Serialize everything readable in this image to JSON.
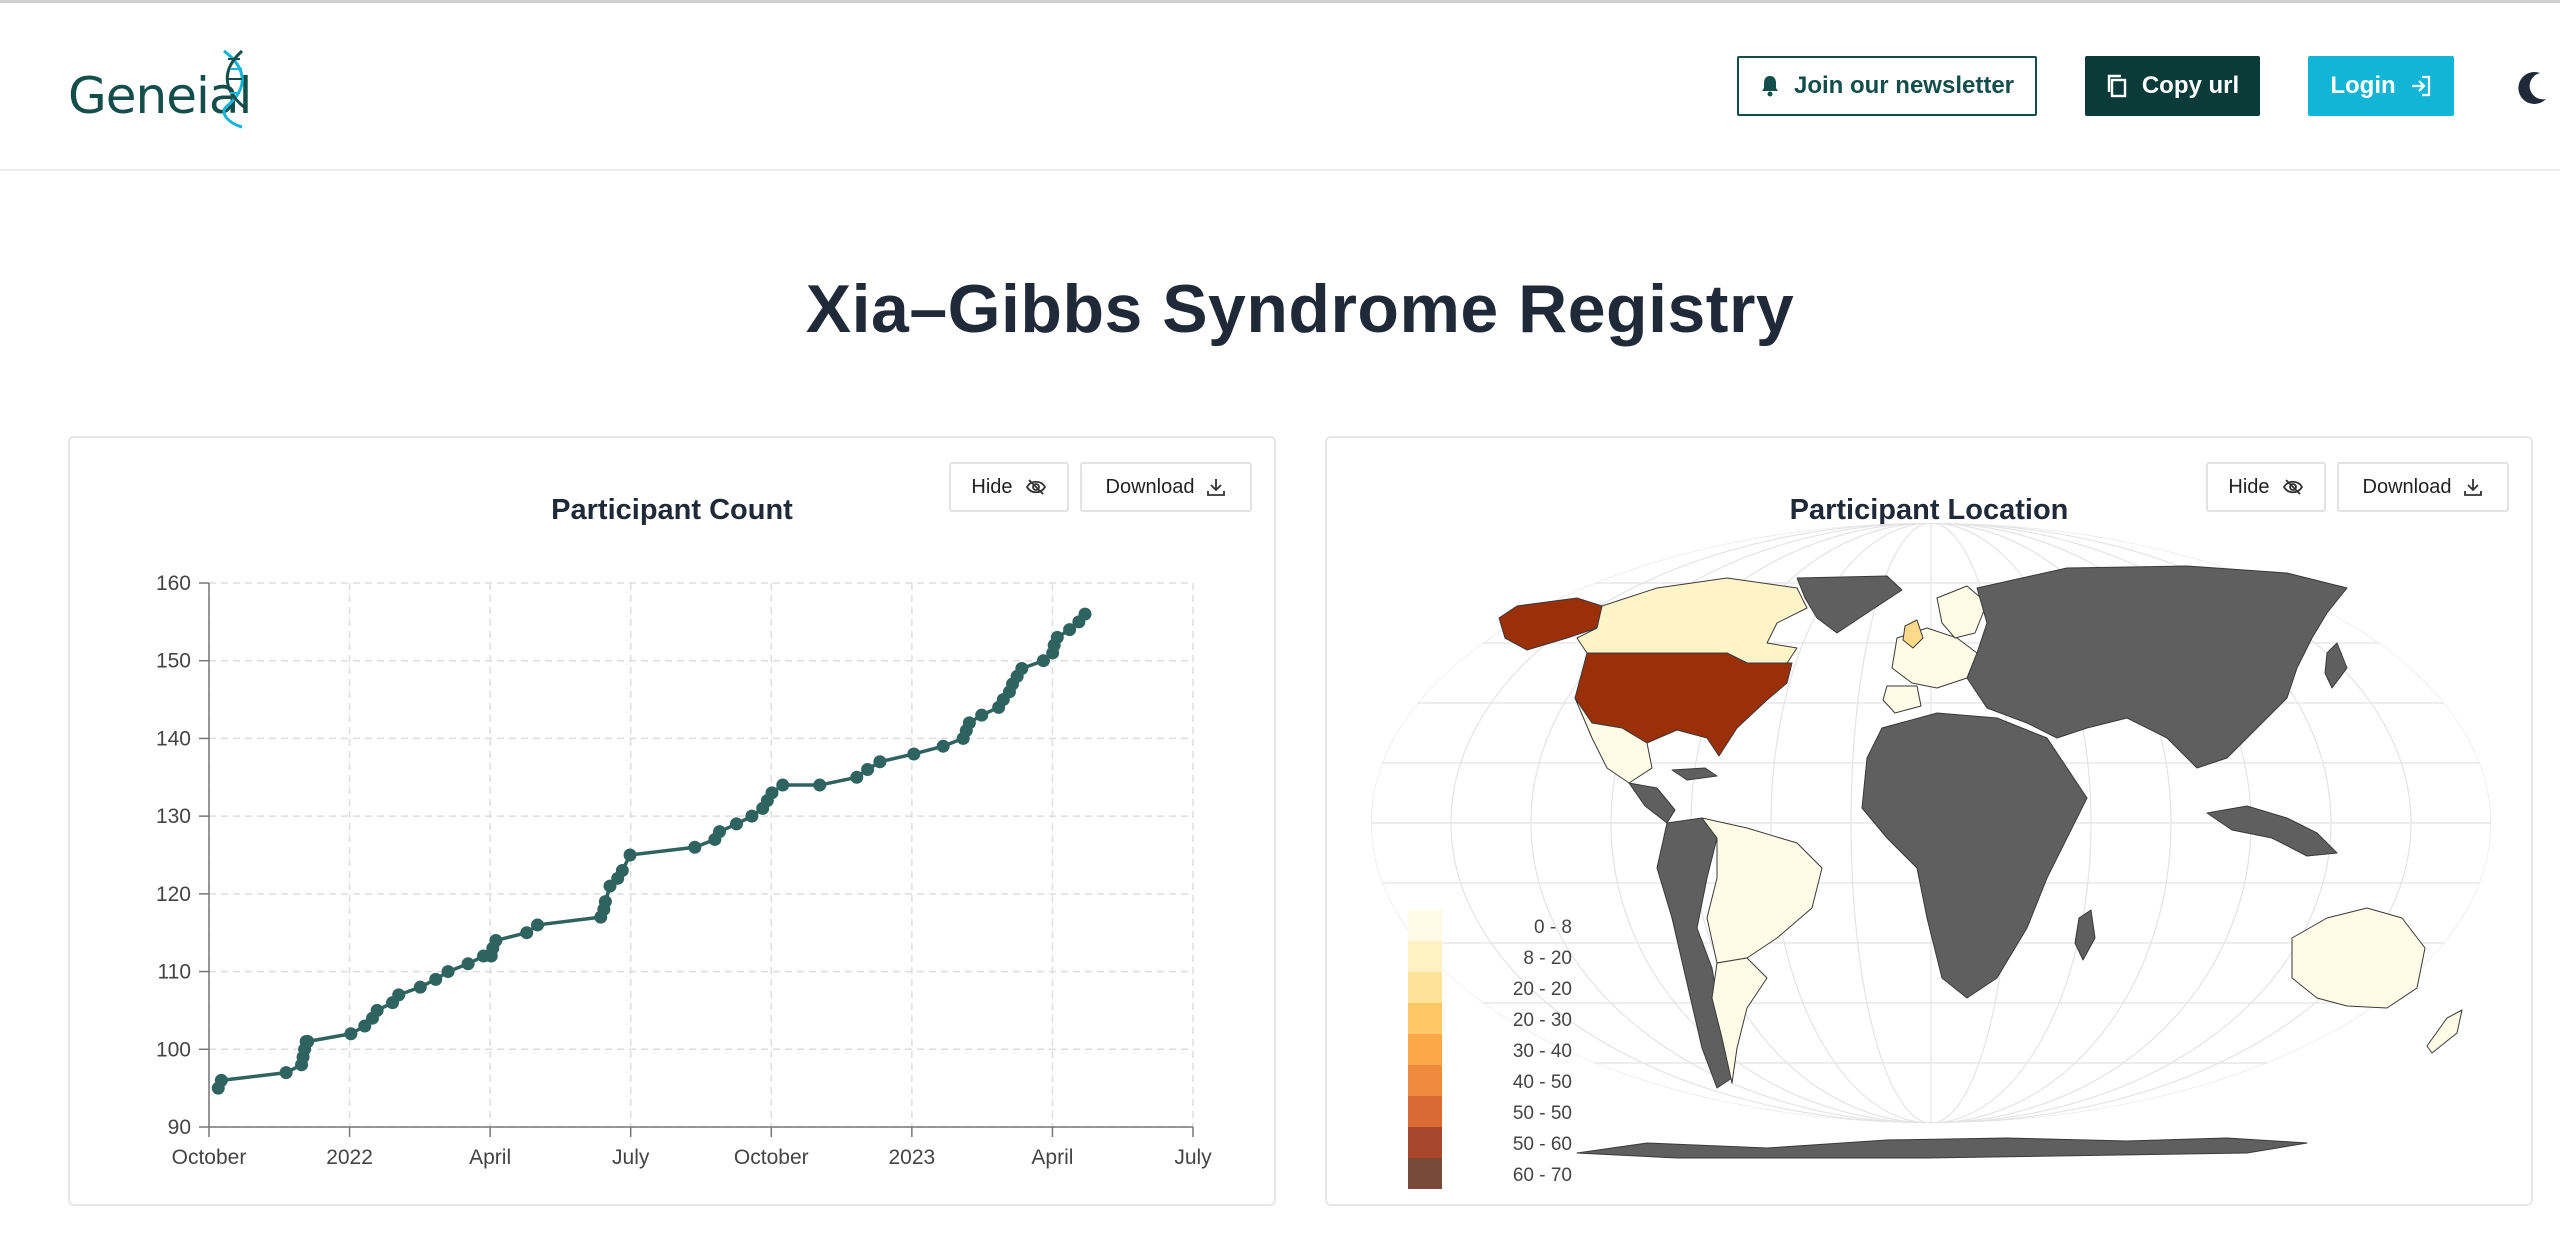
{
  "header": {
    "logo_text": "Geneial",
    "newsletter_label": "Join our newsletter",
    "copy_label": "Copy url",
    "login_label": "Login"
  },
  "page": {
    "title": "Xia–Gibbs Syndrome Registry"
  },
  "cards": {
    "count": {
      "title": "Participant Count",
      "hide_label": "Hide",
      "download_label": "Download"
    },
    "location": {
      "title": "Participant Location",
      "hide_label": "Hide",
      "download_label": "Download"
    }
  },
  "colors": {
    "brand": "#134e4a",
    "accent": "#13b5d6",
    "line": "#2f6360",
    "land": "#5f5f5f"
  },
  "chart_data": [
    {
      "type": "line",
      "title": "Participant Count",
      "xlabel": "",
      "ylabel": "",
      "x_tick_labels": [
        "October",
        "2022",
        "April",
        "July",
        "October",
        "2023",
        "April",
        "July"
      ],
      "y_ticks": [
        90,
        100,
        110,
        120,
        130,
        140,
        150,
        160
      ],
      "ylim": [
        90,
        160
      ],
      "xlim": [
        "2021-10-01",
        "2023-07-01"
      ],
      "grid": true,
      "series": [
        {
          "x": [
            "2021-10-07",
            "2021-10-09",
            "2021-11-20",
            "2021-11-30",
            "2021-12-01",
            "2021-12-02",
            "2021-12-03",
            "2021-12-04",
            "2022-01-01",
            "2022-01-10",
            "2022-01-15",
            "2022-01-18",
            "2022-01-28",
            "2022-02-01",
            "2022-02-15",
            "2022-02-25",
            "2022-03-05",
            "2022-03-18",
            "2022-03-28",
            "2022-04-02",
            "2022-04-03",
            "2022-04-05",
            "2022-04-25",
            "2022-05-02",
            "2022-06-12",
            "2022-06-14",
            "2022-06-15",
            "2022-06-18",
            "2022-06-23",
            "2022-06-26",
            "2022-07-01",
            "2022-08-12",
            "2022-08-25",
            "2022-08-28",
            "2022-09-08",
            "2022-09-18",
            "2022-09-25",
            "2022-09-28",
            "2022-10-01",
            "2022-10-08",
            "2022-11-01",
            "2022-11-25",
            "2022-12-02",
            "2022-12-10",
            "2023-01-01",
            "2023-01-20",
            "2023-02-02",
            "2023-02-04",
            "2023-02-06",
            "2023-02-14",
            "2023-02-25",
            "2023-02-28",
            "2023-03-04",
            "2023-03-06",
            "2023-03-09",
            "2023-03-12",
            "2023-03-26",
            "2023-04-01",
            "2023-04-02",
            "2023-04-04",
            "2023-04-12",
            "2023-04-18",
            "2023-04-22"
          ],
          "values": [
            95,
            96,
            97,
            98,
            99,
            100,
            101,
            101,
            102,
            103,
            104,
            105,
            106,
            107,
            108,
            109,
            110,
            111,
            112,
            112,
            113,
            114,
            115,
            116,
            117,
            118,
            119,
            121,
            122,
            123,
            125,
            126,
            127,
            128,
            129,
            130,
            131,
            132,
            133,
            134,
            134,
            135,
            136,
            137,
            138,
            139,
            140,
            141,
            142,
            143,
            144,
            145,
            146,
            147,
            148,
            149,
            150,
            151,
            152,
            153,
            154,
            155,
            156
          ]
        }
      ]
    },
    {
      "type": "map",
      "title": "Participant Location",
      "legend_placement": "bottom-left",
      "legend": [
        {
          "label": "0 - 8",
          "color": "#fffbe6"
        },
        {
          "label": "8 - 20",
          "color": "#fff1c2"
        },
        {
          "label": "20 - 20",
          "color": "#ffe29a"
        },
        {
          "label": "20 - 30",
          "color": "#ffc766"
        },
        {
          "label": "30 - 40",
          "color": "#fca84a"
        },
        {
          "label": "40 - 50",
          "color": "#f08a3c"
        },
        {
          "label": "50 - 50",
          "color": "#d96a34"
        },
        {
          "label": "50 - 60",
          "color": "#a9472c"
        },
        {
          "label": "60 - 70",
          "color": "#7a4a38"
        }
      ],
      "highlighted_regions": [
        {
          "name": "United States",
          "band": "60 - 70",
          "color": "#9a2f08"
        },
        {
          "name": "Canada",
          "band": "8 - 20",
          "color": "#fff4c8"
        },
        {
          "name": "Mexico",
          "band": "0 - 8",
          "color": "#fffbe6"
        },
        {
          "name": "Brazil",
          "band": "0 - 8",
          "color": "#fffbe6"
        },
        {
          "name": "Argentina",
          "band": "0 - 8",
          "color": "#fffbe6"
        },
        {
          "name": "Australia",
          "band": "0 - 8",
          "color": "#fffbe6"
        },
        {
          "name": "United Kingdom",
          "band": "20 - 30",
          "color": "#ffd98a"
        },
        {
          "name": "Western Europe",
          "band": "0 - 8",
          "color": "#fffbe6"
        }
      ]
    }
  ]
}
